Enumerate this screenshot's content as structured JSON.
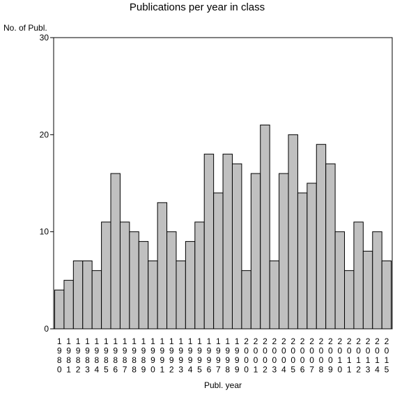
{
  "chart_data": {
    "type": "bar",
    "title": "Publications per year in class",
    "xlabel": "Publ. year",
    "ylabel": "No. of Publ.",
    "ylim": [
      0,
      30
    ],
    "yticks": [
      0,
      10,
      20,
      30
    ],
    "grid": false,
    "bar_color": "#c0c0c0",
    "categories": [
      "1980",
      "1981",
      "1982",
      "1983",
      "1984",
      "1985",
      "1986",
      "1987",
      "1988",
      "1989",
      "1990",
      "1991",
      "1992",
      "1993",
      "1994",
      "1995",
      "1996",
      "1997",
      "1998",
      "1999",
      "2000",
      "2001",
      "2002",
      "2003",
      "2004",
      "2005",
      "2006",
      "2007",
      "2008",
      "2009",
      "2010",
      "2011",
      "2012",
      "2013",
      "2014",
      "2015"
    ],
    "values": [
      4,
      5,
      7,
      7,
      6,
      11,
      16,
      11,
      10,
      9,
      7,
      13,
      10,
      7,
      9,
      11,
      18,
      14,
      18,
      17,
      6,
      16,
      21,
      7,
      16,
      20,
      14,
      15,
      19,
      17,
      10,
      6,
      11,
      8,
      10,
      7
    ]
  }
}
